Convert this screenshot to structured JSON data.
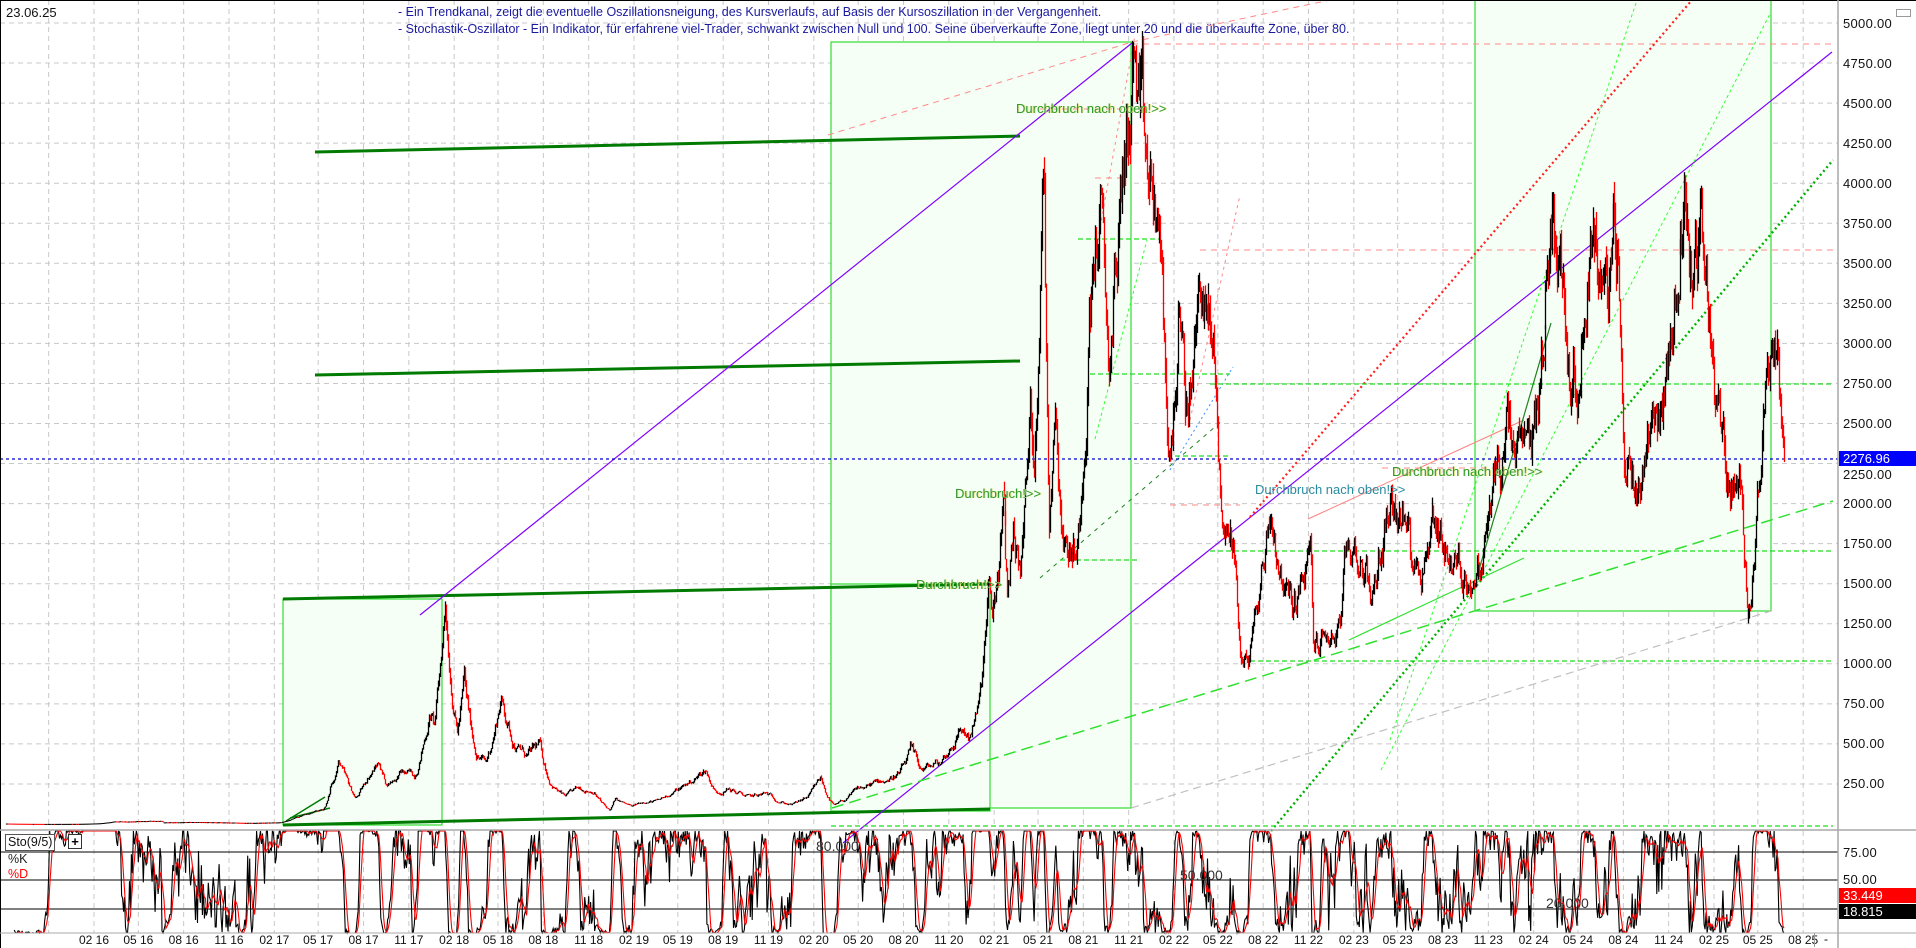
{
  "header": {
    "date": "23.06.25",
    "notes": [
      "- Ein Trendkanal, zeigt die eventuelle Oszillationsneigung, des Kursverlaufs, auf Basis der Kursoszillation in der Vergangenheit.",
      "- Stochastik-Oszillator - Ein Indikator, für erfahrene viel-Trader, schwankt zwischen Null und 100. Seine überverkaufte Zone, liegt unter 20 und die überkaufte Zone, über 80."
    ]
  },
  "price_axis": {
    "ticks": [
      "5000.00",
      "4750.00",
      "4500.00",
      "4250.00",
      "4000.00",
      "3750.00",
      "3500.00",
      "3250.00",
      "3000.00",
      "2750.00",
      "2500.00",
      "2250.00",
      "2000.00",
      "1750.00",
      "1500.00",
      "1250.00",
      "1000.00",
      "750.00",
      "500.00",
      "250.00"
    ],
    "last_price": "2276.96"
  },
  "annotations": [
    {
      "text": "Durchbruch nach oben!>>"
    },
    {
      "text": "Durchbruch!>>"
    },
    {
      "text": "Durchbruch!>>"
    },
    {
      "text": "Durchbruch nach oben!>>"
    },
    {
      "text": "Durchbruch nach oben!>>"
    }
  ],
  "stoch": {
    "title": "Sto(9/5)",
    "add_button": "+",
    "k_label": "%K",
    "d_label": "%D",
    "axis_ticks": [
      "75.00",
      "50.00"
    ],
    "level_labels": [
      "80.000",
      "50.000",
      "20.000"
    ],
    "d_value": "33.449",
    "k_value": "18.815"
  },
  "time_axis": {
    "labels": [
      "02 16",
      "05 16",
      "08 16",
      "11 16",
      "02 17",
      "05 17",
      "08 17",
      "11 17",
      "02 18",
      "05 18",
      "08 18",
      "11 18",
      "02 19",
      "05 19",
      "08 19",
      "11 19",
      "02 20",
      "05 20",
      "08 20",
      "11 20",
      "02 21",
      "05 21",
      "08 21",
      "11 21",
      "02 22",
      "05 22",
      "08 22",
      "11 22",
      "02 23",
      "05 23",
      "08 23",
      "11 23",
      "02 24",
      "05 24",
      "08 24",
      "11 24",
      "02 25",
      "05 25",
      "08 25"
    ],
    "end_button": "-"
  },
  "colors": {
    "candle_up": "#000000",
    "candle_down": "#ff0000",
    "last_price_tag": "#0000ff",
    "d_line": "#ff0000",
    "k_line": "#000000",
    "channel": "#007a00",
    "trend_purple": "#8000ff",
    "box_fill": "#f6fff6",
    "box_stroke": "#33dd33"
  },
  "chart_data": {
    "type": "line",
    "title": "",
    "xlabel": "",
    "ylabel": "",
    "ylim": [
      0,
      5000
    ],
    "y_ticks": [
      250,
      500,
      750,
      1000,
      1250,
      1500,
      1750,
      2000,
      2250,
      2500,
      2750,
      3000,
      3250,
      3500,
      3750,
      4000,
      4250,
      4500,
      4750,
      5000
    ],
    "grid": true,
    "last_value": 2276.96,
    "points": [
      [
        "2015-08-07",
        2.8
      ],
      [
        "2015-10-20",
        0.5
      ],
      [
        "2016-01-01",
        1
      ],
      [
        "2016-03-13",
        15
      ],
      [
        "2016-06-17",
        20
      ],
      [
        "2016-06-20",
        10
      ],
      [
        "2016-09-01",
        12
      ],
      [
        "2016-12-20",
        7
      ],
      [
        "2017-02-15",
        12
      ],
      [
        "2017-03-15",
        45
      ],
      [
        "2017-05-10",
        90
      ],
      [
        "2017-05-25",
        220
      ],
      [
        "2017-06-12",
        400
      ],
      [
        "2017-07-16",
        160
      ],
      [
        "2017-08-10",
        300
      ],
      [
        "2017-09-01",
        390
      ],
      [
        "2017-09-15",
        250
      ],
      [
        "2017-10-15",
        320
      ],
      [
        "2017-11-12",
        300
      ],
      [
        "2017-11-28",
        480
      ],
      [
        "2017-12-13",
        700
      ],
      [
        "2017-12-22",
        620
      ],
      [
        "2018-01-13",
        1400
      ],
      [
        "2018-02-06",
        600
      ],
      [
        "2018-02-20",
        900
      ],
      [
        "2018-03-18",
        450
      ],
      [
        "2018-04-06",
        380
      ],
      [
        "2018-05-06",
        800
      ],
      [
        "2018-05-29",
        530
      ],
      [
        "2018-06-28",
        420
      ],
      [
        "2018-07-24",
        480
      ],
      [
        "2018-08-14",
        270
      ],
      [
        "2018-09-12",
        170
      ],
      [
        "2018-10-15",
        220
      ],
      [
        "2018-11-10",
        210
      ],
      [
        "2018-12-14",
        85
      ],
      [
        "2018-12-24",
        150
      ],
      [
        "2019-01-28",
        105
      ],
      [
        "2019-02-20",
        145
      ],
      [
        "2019-03-20",
        140
      ],
      [
        "2019-04-10",
        180
      ],
      [
        "2019-05-30",
        270
      ],
      [
        "2019-06-26",
        340
      ],
      [
        "2019-07-16",
        200
      ],
      [
        "2019-08-10",
        220
      ],
      [
        "2019-09-24",
        165
      ],
      [
        "2019-10-26",
        185
      ],
      [
        "2019-12-17",
        120
      ],
      [
        "2020-01-20",
        165
      ],
      [
        "2020-02-15",
        280
      ],
      [
        "2020-03-13",
        110
      ],
      [
        "2020-04-29",
        215
      ],
      [
        "2020-06-01",
        245
      ],
      [
        "2020-07-25",
        320
      ],
      [
        "2020-08-14",
        440
      ],
      [
        "2020-09-05",
        335
      ],
      [
        "2020-10-15",
        380
      ],
      [
        "2020-11-24",
        600
      ],
      [
        "2020-12-10",
        550
      ],
      [
        "2021-01-01",
        740
      ],
      [
        "2021-01-19",
        1400
      ],
      [
        "2021-01-27",
        1250
      ],
      [
        "2021-02-20",
        1950
      ],
      [
        "2021-02-28",
        1400
      ],
      [
        "2021-03-13",
        1900
      ],
      [
        "2021-03-25",
        1580
      ],
      [
        "2021-04-15",
        2500
      ],
      [
        "2021-04-22",
        2300
      ],
      [
        "2021-05-12",
        4350
      ],
      [
        "2021-05-23",
        2000
      ],
      [
        "2021-06-03",
        2800
      ],
      [
        "2021-06-22",
        1800
      ],
      [
        "2021-07-20",
        1720
      ],
      [
        "2021-08-13",
        3300
      ],
      [
        "2021-09-03",
        3950
      ],
      [
        "2021-09-21",
        2750
      ],
      [
        "2021-10-01",
        3300
      ],
      [
        "2021-10-29",
        4400
      ],
      [
        "2021-11-10",
        4800
      ],
      [
        "2021-11-28",
        4100
      ],
      [
        "2021-12-04",
        3900
      ],
      [
        "2021-12-31",
        3700
      ],
      [
        "2022-01-24",
        2200
      ],
      [
        "2022-02-10",
        3200
      ],
      [
        "2022-02-24",
        2500
      ],
      [
        "2022-03-29",
        3450
      ],
      [
        "2022-04-25",
        2800
      ],
      [
        "2022-05-12",
        1800
      ],
      [
        "2022-06-01",
        1800
      ],
      [
        "2022-06-18",
        1000
      ],
      [
        "2022-07-01",
        1050
      ],
      [
        "2022-08-14",
        1990
      ],
      [
        "2022-09-07",
        1600
      ],
      [
        "2022-09-30",
        1330
      ],
      [
        "2022-11-05",
        1640
      ],
      [
        "2022-11-10",
        1100
      ],
      [
        "2022-12-31",
        1200
      ],
      [
        "2023-01-20",
        1650
      ],
      [
        "2023-02-16",
        1680
      ],
      [
        "2023-03-10",
        1420
      ],
      [
        "2023-04-16",
        2120
      ],
      [
        "2023-05-20",
        1800
      ],
      [
        "2023-06-15",
        1650
      ],
      [
        "2023-07-15",
        1950
      ],
      [
        "2023-08-20",
        1650
      ],
      [
        "2023-09-11",
        1550
      ],
      [
        "2023-10-20",
        1600
      ],
      [
        "2023-11-10",
        2100
      ],
      [
        "2023-12-09",
        2350
      ],
      [
        "2024-01-03",
        2200
      ],
      [
        "2024-01-23",
        2200
      ],
      [
        "2024-02-20",
        3000
      ],
      [
        "2024-03-12",
        4050
      ],
      [
        "2024-04-13",
        3000
      ],
      [
        "2024-05-01",
        2900
      ],
      [
        "2024-05-27",
        3900
      ],
      [
        "2024-06-24",
        3300
      ],
      [
        "2024-07-20",
        3500
      ],
      [
        "2024-08-05",
        2200
      ],
      [
        "2024-09-06",
        2200
      ],
      [
        "2024-09-27",
        2700
      ],
      [
        "2024-10-22",
        2600
      ],
      [
        "2024-11-12",
        3300
      ],
      [
        "2024-12-06",
        4050
      ],
      [
        "2024-12-20",
        3400
      ],
      [
        "2025-01-06",
        3700
      ],
      [
        "2025-01-27",
        3100
      ],
      [
        "2025-02-03",
        2650
      ],
      [
        "2025-02-28",
        2150
      ],
      [
        "2025-03-25",
        2050
      ],
      [
        "2025-04-09",
        1420
      ],
      [
        "2025-04-25",
        1800
      ],
      [
        "2025-05-10",
        2600
      ],
      [
        "2025-05-27",
        2700
      ],
      [
        "2025-06-11",
        2850
      ],
      [
        "2025-06-23",
        2277
      ]
    ],
    "indicator": {
      "name": "Sto(9/5)",
      "ylim": [
        0,
        100
      ],
      "levels": [
        80,
        50,
        20
      ]
    }
  }
}
